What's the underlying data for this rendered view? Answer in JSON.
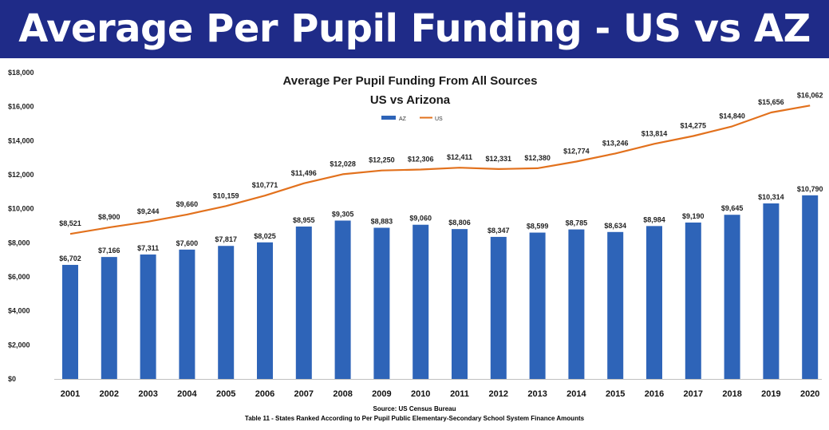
{
  "banner": {
    "title": "Average Per Pupil Funding - US vs AZ"
  },
  "chart_data": {
    "type": "bar",
    "title_line1": "Average Per Pupil Funding From All Sources",
    "title_line2": "US vs Arizona",
    "categories": [
      "2001",
      "2002",
      "2003",
      "2004",
      "2005",
      "2006",
      "2007",
      "2008",
      "2009",
      "2010",
      "2011",
      "2012",
      "2013",
      "2014",
      "2015",
      "2016",
      "2017",
      "2018",
      "2019",
      "2020"
    ],
    "series": [
      {
        "name": "AZ",
        "kind": "bar",
        "color": "#2e64b8",
        "values": [
          6702,
          7166,
          7311,
          7600,
          7817,
          8025,
          8955,
          9305,
          8883,
          9060,
          8806,
          8347,
          8599,
          8785,
          8634,
          8984,
          9190,
          9645,
          10314,
          10790
        ],
        "labels": [
          "$6,702",
          "$7,166",
          "$7,311",
          "$7,600",
          "$7,817",
          "$8,025",
          "$8,955",
          "$9,305",
          "$8,883",
          "$9,060",
          "$8,806",
          "$8,347",
          "$8,599",
          "$8,785",
          "$8,634",
          "$8,984",
          "$9,190",
          "$9,645",
          "$10,314",
          "$10,790"
        ]
      },
      {
        "name": "US",
        "kind": "line",
        "color": "#e2711d",
        "values": [
          8521,
          8900,
          9244,
          9660,
          10159,
          10771,
          11496,
          12028,
          12250,
          12306,
          12411,
          12331,
          12380,
          12774,
          13246,
          13814,
          14275,
          14840,
          15656,
          16062
        ],
        "labels": [
          "$8,521",
          "$8,900",
          "$9,244",
          "$9,660",
          "$10,159",
          "$10,771",
          "$11,496",
          "$12,028",
          "$12,250",
          "$12,306",
          "$12,411",
          "$12,331",
          "$12,380",
          "$12,774",
          "$13,246",
          "$13,814",
          "$14,275",
          "$14,840",
          "$15,656",
          "$16,062"
        ]
      }
    ],
    "ylim": [
      0,
      18000
    ],
    "yticks": [
      0,
      2000,
      4000,
      6000,
      8000,
      10000,
      12000,
      14000,
      16000,
      18000
    ],
    "ytick_labels": [
      "$0",
      "$2,000",
      "$4,000",
      "$6,000",
      "$8,000",
      "$10,000",
      "$12,000",
      "$14,000",
      "$16,000",
      "$18,000"
    ],
    "legend_position": "top-center"
  },
  "source": {
    "line1": "Source: US Census Bureau",
    "line2": "Table 11 - States Ranked According to Per Pupil Public Elementary-Secondary School System Finance Amounts"
  }
}
